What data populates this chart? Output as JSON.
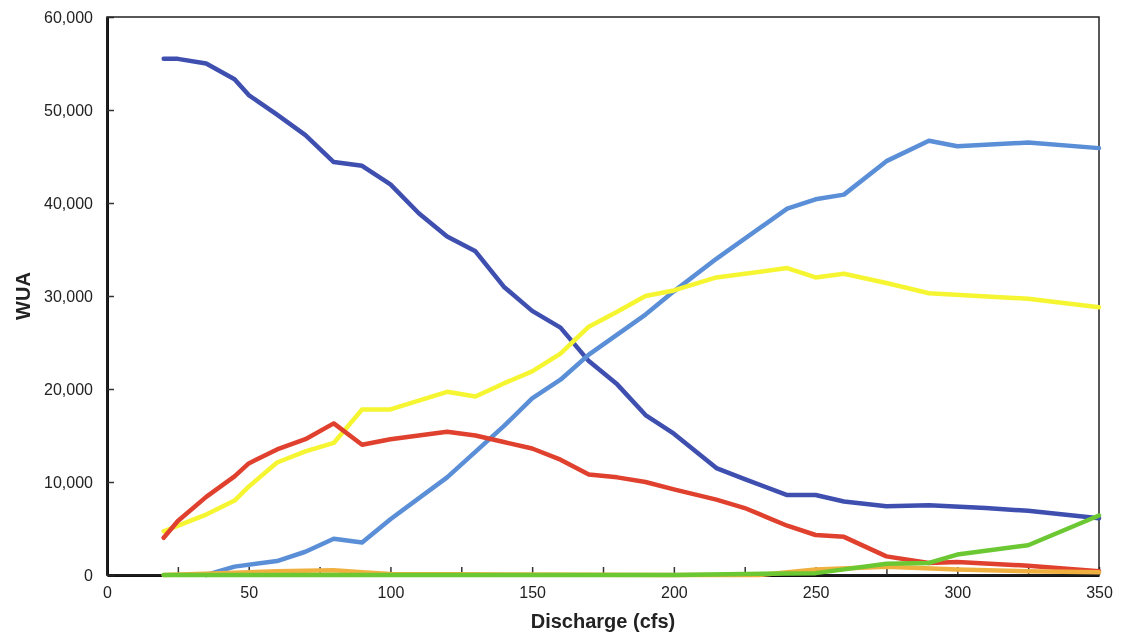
{
  "chart_data": {
    "type": "line",
    "xlabel": "Discharge (cfs)",
    "ylabel": "WUA",
    "xlim": [
      0,
      350
    ],
    "ylim": [
      0,
      60000
    ],
    "xticks": [
      0,
      {
        "value": 25,
        "label": null
      },
      50,
      {
        "value": 75,
        "label": null
      },
      100,
      {
        "value": 125,
        "label": null
      },
      150,
      {
        "value": 175,
        "label": null
      },
      200,
      {
        "value": 225,
        "label": null
      },
      250,
      {
        "value": 275,
        "label": null
      },
      300,
      {
        "value": 325,
        "label": null
      },
      350
    ],
    "yticks": [
      {
        "value": 0,
        "label": "0"
      },
      {
        "value": 10000,
        "label": "10,000"
      },
      {
        "value": 20000,
        "label": "20,000"
      },
      {
        "value": 30000,
        "label": "30,000"
      },
      {
        "value": 40000,
        "label": "40,000"
      },
      {
        "value": 50000,
        "label": "50,000"
      },
      {
        "value": 60000,
        "label": "60,000"
      }
    ],
    "series": [
      {
        "color": "#3f4fb0",
        "x": [
          20,
          25,
          35,
          45,
          50,
          60,
          70,
          80,
          90,
          100,
          110,
          120,
          130,
          140,
          150,
          160,
          170,
          180,
          190,
          200,
          215,
          225,
          240,
          250,
          260,
          275,
          290,
          310,
          325,
          350
        ],
        "values": [
          55500,
          55500,
          55000,
          53300,
          51600,
          49500,
          47300,
          44400,
          44000,
          42000,
          38900,
          36400,
          34800,
          31000,
          28400,
          26600,
          23000,
          20500,
          17200,
          15200,
          11500,
          10300,
          8600,
          8600,
          7900,
          7400,
          7500,
          7200,
          6900,
          6100
        ]
      },
      {
        "color": "#5a8fd8",
        "x": [
          35,
          45,
          60,
          70,
          80,
          90,
          100,
          120,
          140,
          150,
          160,
          170,
          190,
          200,
          215,
          240,
          250,
          260,
          275,
          290,
          300,
          325,
          350
        ],
        "values": [
          0,
          900,
          1500,
          2500,
          3900,
          3500,
          6000,
          10500,
          16000,
          19000,
          21000,
          23700,
          28000,
          30500,
          34000,
          39400,
          40400,
          40900,
          44500,
          46700,
          46100,
          46500,
          45900
        ]
      },
      {
        "color": "#f5f531",
        "x": [
          20,
          30,
          35,
          45,
          50,
          60,
          70,
          80,
          90,
          100,
          120,
          130,
          140,
          150,
          160,
          170,
          180,
          190,
          200,
          215,
          240,
          250,
          260,
          275,
          290,
          325,
          350
        ],
        "values": [
          4700,
          5900,
          6500,
          8000,
          9500,
          12100,
          13300,
          14200,
          17800,
          17800,
          19700,
          19200,
          20600,
          21900,
          23800,
          26700,
          28300,
          30000,
          30600,
          32000,
          33000,
          32000,
          32400,
          31400,
          30300,
          29700,
          28800
        ]
      },
      {
        "color": "#e0402e",
        "x": [
          20,
          25,
          35,
          45,
          50,
          60,
          70,
          80,
          90,
          100,
          120,
          130,
          140,
          150,
          160,
          170,
          180,
          190,
          200,
          215,
          225,
          240,
          250,
          260,
          275,
          290,
          300,
          325,
          350
        ],
        "values": [
          4000,
          5800,
          8400,
          10600,
          12000,
          13500,
          14600,
          16300,
          14000,
          14600,
          15400,
          15000,
          14300,
          13600,
          12400,
          10800,
          10500,
          10000,
          9200,
          8100,
          7200,
          5300,
          4300,
          4100,
          2000,
          1300,
          1400,
          1000,
          400
        ]
      },
      {
        "color": "#f0b040",
        "x": [
          20,
          40,
          60,
          80,
          90,
          100,
          200,
          230,
          250,
          275,
          300,
          325,
          350
        ],
        "values": [
          0,
          200,
          400,
          500,
          300,
          100,
          0,
          0,
          600,
          900,
          600,
          400,
          300
        ]
      },
      {
        "color": "#6cc832",
        "x": [
          20,
          100,
          200,
          250,
          275,
          290,
          300,
          325,
          350
        ],
        "values": [
          0,
          0,
          0,
          200,
          1200,
          1300,
          2200,
          3200,
          6400
        ]
      }
    ]
  }
}
